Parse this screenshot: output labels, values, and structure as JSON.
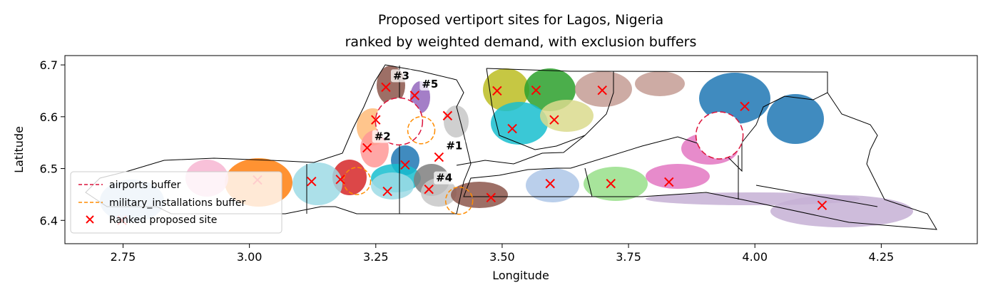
{
  "chart_data": {
    "type": "scatter",
    "title": "Proposed vertiport sites for Lagos, Nigeria",
    "subtitle": "ranked by weighted demand, with exclusion buffers",
    "xlabel": "Longitude",
    "ylabel": "Latitude",
    "xlim": [
      2.635,
      4.44
    ],
    "ylim": [
      6.355,
      6.718
    ],
    "xticks": [
      "2.75",
      "3.00",
      "3.25",
      "3.50",
      "3.75",
      "4.00",
      "4.25"
    ],
    "xtick_values": [
      2.75,
      3.0,
      3.25,
      3.5,
      3.75,
      4.0,
      4.25
    ],
    "yticks": [
      "6.4",
      "6.5",
      "6.6",
      "6.7"
    ],
    "ytick_values": [
      6.4,
      6.5,
      6.6,
      6.7
    ],
    "grid": false,
    "legend_position": "lower-left",
    "legend": [
      {
        "label": "airports buffer",
        "color": "#dc143c",
        "style": "dashed-line"
      },
      {
        "label": "military_installations buffer",
        "color": "#ff8c00",
        "style": "dashed-line"
      },
      {
        "label": "Ranked proposed site",
        "color": "#ff0000",
        "style": "x-marker"
      }
    ],
    "colors": {
      "site_marker": "#ff0000",
      "airport_buffer": "#dc143c",
      "military_buffer": "#ff8c00",
      "boundary": "#000000"
    },
    "rank_labels": [
      "#1",
      "#2",
      "#3",
      "#4",
      "#5"
    ],
    "sites": [
      {
        "x": 3.375,
        "y": 6.522,
        "rank": "#1"
      },
      {
        "x": 3.233,
        "y": 6.54,
        "rank": "#2"
      },
      {
        "x": 3.27,
        "y": 6.657,
        "rank": "#3"
      },
      {
        "x": 3.355,
        "y": 6.46,
        "rank": "#4"
      },
      {
        "x": 3.327,
        "y": 6.641,
        "rank": "#5"
      },
      {
        "x": 3.25,
        "y": 6.594
      },
      {
        "x": 3.392,
        "y": 6.602
      },
      {
        "x": 3.308,
        "y": 6.507
      },
      {
        "x": 3.273,
        "y": 6.456
      },
      {
        "x": 3.18,
        "y": 6.479
      },
      {
        "x": 3.123,
        "y": 6.475
      },
      {
        "x": 3.016,
        "y": 6.478
      },
      {
        "x": 2.748,
        "y": 6.4
      },
      {
        "x": 3.49,
        "y": 6.65
      },
      {
        "x": 3.567,
        "y": 6.651
      },
      {
        "x": 3.52,
        "y": 6.577
      },
      {
        "x": 3.603,
        "y": 6.594
      },
      {
        "x": 3.698,
        "y": 6.651
      },
      {
        "x": 3.98,
        "y": 6.62
      },
      {
        "x": 3.478,
        "y": 6.444
      },
      {
        "x": 3.595,
        "y": 6.471
      },
      {
        "x": 3.715,
        "y": 6.471
      },
      {
        "x": 3.83,
        "y": 6.474
      },
      {
        "x": 4.133,
        "y": 6.429
      }
    ],
    "airport_buffers": [
      {
        "x": 3.296,
        "y": 6.591
      },
      {
        "x": 3.93,
        "y": 6.564
      }
    ],
    "military_buffers": [
      {
        "x": 3.213,
        "y": 6.476
      },
      {
        "x": 3.34,
        "y": 6.574
      },
      {
        "x": 3.415,
        "y": 6.438
      }
    ]
  }
}
